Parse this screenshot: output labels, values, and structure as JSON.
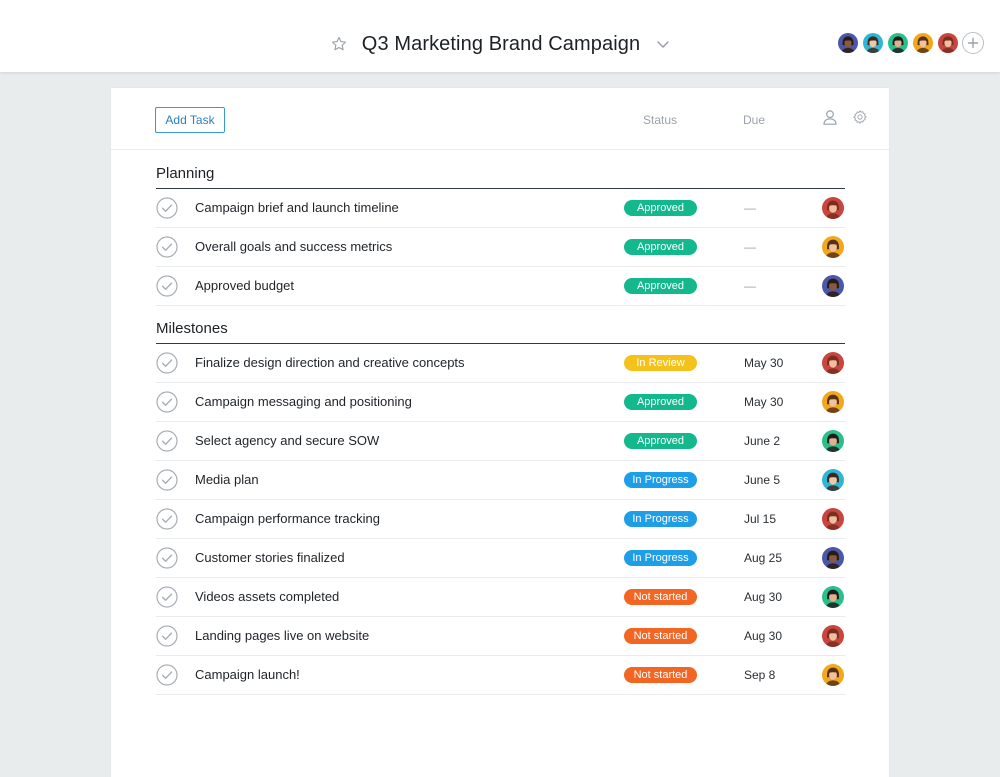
{
  "header": {
    "title": "Q3 Marketing Brand Campaign",
    "star_icon": "star-outline-icon",
    "dropdown_icon": "chevron-down-icon",
    "members": [
      {
        "name": "member-1",
        "skin": "#8a5a3c",
        "hair": "#2b1a12",
        "bg": "#4b57a8"
      },
      {
        "name": "member-2",
        "skin": "#f1c7a6",
        "hair": "#3a2a20",
        "bg": "#2fb5d6"
      },
      {
        "name": "member-3",
        "skin": "#e2b08e",
        "hair": "#1d1d1d",
        "bg": "#29c08a"
      },
      {
        "name": "member-4",
        "skin": "#f0c29d",
        "hair": "#5a3115",
        "bg": "#f2a81d"
      },
      {
        "name": "member-5",
        "skin": "#efc0a0",
        "hair": "#7a2e1e",
        "bg": "#c9453f"
      }
    ],
    "add_member_icon": "plus-circle-icon"
  },
  "toolbar": {
    "add_task_label": "Add Task",
    "status_header": "Status",
    "due_header": "Due",
    "assignee_icon": "person-icon",
    "settings_icon": "gear-icon"
  },
  "status_colors": {
    "Approved": "#14b88d",
    "In Review": "#f4c21b",
    "In Progress": "#1f9ee8",
    "Not started": "#f26522"
  },
  "avatars": {
    "red": {
      "skin": "#efc0a0",
      "hair": "#7a2e1e",
      "bg": "#c9453f"
    },
    "yellow": {
      "skin": "#f0c29d",
      "hair": "#5a3115",
      "bg": "#f2a81d"
    },
    "purple": {
      "skin": "#8a5a3c",
      "hair": "#2b1a12",
      "bg": "#4b57a8"
    },
    "green": {
      "skin": "#e2b08e",
      "hair": "#1d1d1d",
      "bg": "#29c08a"
    },
    "teal": {
      "skin": "#f1c7a6",
      "hair": "#3a2a20",
      "bg": "#2fb5d6"
    }
  },
  "sections": [
    {
      "title": "Planning",
      "tasks": [
        {
          "name": "Campaign brief and launch timeline",
          "status": "Approved",
          "due": "—",
          "avatar": "red"
        },
        {
          "name": "Overall goals and success metrics",
          "status": "Approved",
          "due": "—",
          "avatar": "yellow"
        },
        {
          "name": "Approved budget",
          "status": "Approved",
          "due": "—",
          "avatar": "purple"
        }
      ]
    },
    {
      "title": "Milestones",
      "tasks": [
        {
          "name": "Finalize design direction and creative concepts",
          "status": "In Review",
          "due": "May 30",
          "avatar": "red"
        },
        {
          "name": "Campaign messaging and positioning",
          "status": "Approved",
          "due": "May 30",
          "avatar": "yellow"
        },
        {
          "name": "Select agency and secure SOW",
          "status": "Approved",
          "due": "June 2",
          "avatar": "green"
        },
        {
          "name": "Media plan",
          "status": "In Progress",
          "due": "June 5",
          "avatar": "teal"
        },
        {
          "name": "Campaign performance tracking",
          "status": "In Progress",
          "due": "Jul 15",
          "avatar": "red"
        },
        {
          "name": "Customer stories finalized",
          "status": "In Progress",
          "due": "Aug 25",
          "avatar": "purple"
        },
        {
          "name": "Videos assets completed",
          "status": "Not started",
          "due": "Aug 30",
          "avatar": "green"
        },
        {
          "name": "Landing pages live on website",
          "status": "Not started",
          "due": "Aug 30",
          "avatar": "red"
        },
        {
          "name": "Campaign launch!",
          "status": "Not started",
          "due": "Sep 8",
          "avatar": "yellow"
        }
      ]
    }
  ]
}
